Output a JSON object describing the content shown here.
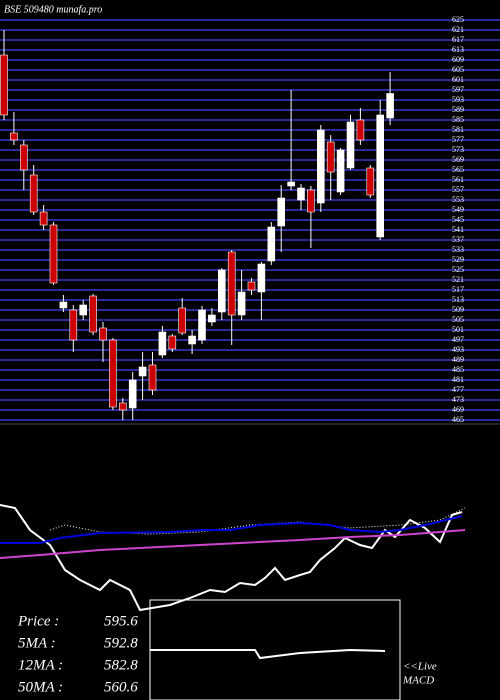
{
  "chart_data": [
    {
      "type": "candlestick",
      "title": "BSE 509480  munafa.pro",
      "ylim": [
        465,
        625
      ],
      "yticks": [
        465,
        469,
        473,
        477,
        481,
        485,
        489,
        493,
        497,
        501,
        505,
        509,
        513,
        517,
        521,
        525,
        529,
        533,
        537,
        541,
        545,
        549,
        553,
        557,
        561,
        565,
        569,
        573,
        577,
        581,
        585,
        589,
        593,
        597,
        601,
        605,
        609,
        613,
        617,
        621,
        625
      ],
      "grid": true,
      "grid_color": "#2a2a9a",
      "up_color": "#ffffff",
      "down_color": "#cc0000",
      "open": [
        611,
        579.8,
        575,
        563,
        548.2,
        543,
        509.8,
        509,
        507,
        514.6,
        501.8,
        497,
        471.8,
        469.8,
        482.6,
        487,
        491,
        498.6,
        509.8,
        495.4,
        497,
        504.2,
        508.2,
        532.2,
        507,
        520.2,
        516.2,
        528.6,
        542.6,
        558.6,
        553,
        557,
        551.8,
        576.2,
        556.2,
        565.8,
        585,
        565.8,
        538.2,
        585.8
      ],
      "high": [
        621,
        588.2,
        577,
        567,
        551,
        544.2,
        515,
        511,
        513,
        515.4,
        504.2,
        497.8,
        473.8,
        484.2,
        492.2,
        492.2,
        502.6,
        499.4,
        513.8,
        501,
        510.6,
        509.8,
        525.8,
        533,
        525,
        521.8,
        528.2,
        544.2,
        559,
        597,
        559.4,
        558.6,
        583,
        579,
        573.8,
        587,
        589.8,
        567,
        593,
        604.2
      ],
      "low": [
        585,
        575,
        557,
        547,
        541,
        519,
        508.2,
        492.2,
        505,
        499,
        488.2,
        469,
        465,
        465,
        473,
        475,
        489.8,
        492.2,
        499,
        491.4,
        495.4,
        502.6,
        505,
        495,
        505,
        515,
        505,
        527,
        532.2,
        557,
        549,
        533.8,
        548.2,
        553,
        555,
        565,
        575,
        553.8,
        537,
        583
      ],
      "close": [
        587,
        577,
        565,
        548.2,
        543,
        519.8,
        512.2,
        497,
        511,
        500.2,
        497,
        470.2,
        469,
        481,
        486.2,
        477,
        500.2,
        493.4,
        499.8,
        498.6,
        509,
        507,
        525,
        507,
        516.2,
        517,
        527.4,
        542.2,
        553.8,
        560.2,
        557.8,
        548.2,
        581,
        564.2,
        573,
        584.2,
        577,
        555,
        587,
        595.6
      ]
    },
    {
      "type": "line",
      "xlim": [
        0,
        100
      ],
      "ylim": [
        -20,
        100
      ],
      "series": [
        {
          "color": "#ffffff",
          "style": "dotted",
          "x": [
            10,
            13,
            20,
            30,
            40,
            50,
            60,
            70,
            80,
            88,
            93
          ],
          "values": [
            70,
            75,
            68,
            66,
            68,
            75,
            78,
            72,
            75,
            80,
            92
          ]
        },
        {
          "color": "#ffffff",
          "style": "solid",
          "x": [
            0,
            3,
            6,
            10,
            13,
            16,
            20,
            22,
            26,
            28,
            34,
            38,
            42,
            45,
            48,
            51,
            53,
            55,
            57,
            60,
            62,
            64,
            67,
            69,
            72,
            74.4,
            77,
            79,
            82,
            85,
            88,
            90.4,
            92.4
          ],
          "values": [
            95,
            92,
            70,
            55,
            30,
            20,
            10,
            20,
            10,
            -10,
            -5,
            2,
            10,
            8,
            17,
            15,
            22,
            32,
            20,
            25,
            28,
            40,
            52,
            62,
            55,
            52,
            70,
            63,
            80,
            72,
            58,
            85,
            88
          ]
        },
        {
          "color": "#0000dd",
          "style": "solid",
          "x": [
            0,
            8,
            12,
            20,
            34,
            40,
            46,
            52,
            60,
            66,
            70,
            76,
            80,
            86,
            92.4
          ],
          "values": [
            57,
            57,
            62,
            67,
            68,
            70,
            70,
            75,
            77,
            75,
            70,
            68,
            70,
            76,
            84
          ]
        },
        {
          "color": "#cc44cc",
          "style": "solid",
          "x": [
            0,
            8,
            20,
            40,
            48,
            60,
            70,
            80,
            88,
            93
          ],
          "values": [
            42,
            45,
            50,
            55,
            57,
            60,
            63,
            65,
            68,
            70
          ]
        }
      ]
    },
    {
      "type": "line",
      "title": "MACD",
      "subtitle": "<<Live",
      "xlim": [
        0,
        100
      ],
      "ylim": [
        -50,
        50
      ],
      "series": [
        {
          "color": "#ffffff",
          "style": "solid",
          "x": [
            30,
            51,
            52,
            60,
            70,
            77
          ],
          "values": [
            0,
            0,
            -8,
            -3,
            0,
            -1
          ]
        }
      ]
    }
  ],
  "stats": [
    {
      "label": "Price  :",
      "value": 595.6
    },
    {
      "label": "5MA :",
      "value": 592.8
    },
    {
      "label": "12MA :",
      "value": 582.8
    },
    {
      "label": "50MA :",
      "value": 560.6
    }
  ]
}
